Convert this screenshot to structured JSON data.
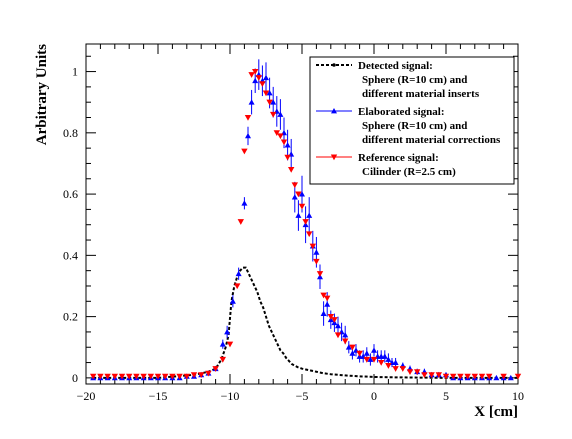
{
  "chart_data": {
    "type": "scatter",
    "xlabel": "X [cm]",
    "ylabel": "Arbitrary Units",
    "xlim": [
      -20,
      10
    ],
    "ylim": [
      -0.02,
      1.09
    ],
    "xticks": [
      -20,
      -15,
      -10,
      -5,
      0,
      5,
      10
    ],
    "yticks": [
      0,
      0.2,
      0.4,
      0.6,
      0.8,
      1
    ],
    "xtick_labels": [
      "−20",
      "−15",
      "−10",
      "−5",
      "0",
      "5",
      "10"
    ],
    "ytick_labels": [
      "0",
      "0.2",
      "0.4",
      "0.6",
      "0.8",
      "1"
    ],
    "grid": false,
    "legend_position": "top-right",
    "series": [
      {
        "name": "Detected signal:",
        "name_lines": [
          "Detected signal:",
          "Sphere (R=10 cm) and",
          "different material inserts"
        ],
        "style": "dashed-line",
        "color": "#000000",
        "x": [
          -19.5,
          -15,
          -12.5,
          -11.5,
          -11,
          -10.6,
          -10.3,
          -10.1,
          -9.9,
          -9.7,
          -9.5,
          -9.3,
          -9.1,
          -8.9,
          -8.7,
          -8.5,
          -8.3,
          -8.1,
          -7.9,
          -7.7,
          -7.5,
          -7.3,
          -7.1,
          -6.9,
          -6.7,
          -6.5,
          -6.3,
          -6.1,
          -5.9,
          -5.7,
          -5.5,
          -5.3,
          -5,
          -4.5,
          -4,
          -3.5,
          -3,
          -2,
          -1,
          0,
          1,
          3,
          5,
          7,
          10
        ],
        "y": [
          0.0,
          0.0,
          0.01,
          0.02,
          0.03,
          0.06,
          0.1,
          0.14,
          0.25,
          0.3,
          0.33,
          0.35,
          0.36,
          0.36,
          0.34,
          0.32,
          0.3,
          0.28,
          0.25,
          0.23,
          0.2,
          0.17,
          0.15,
          0.13,
          0.11,
          0.09,
          0.08,
          0.065,
          0.055,
          0.045,
          0.04,
          0.035,
          0.03,
          0.025,
          0.02,
          0.015,
          0.012,
          0.008,
          0.005,
          0.003,
          0.002,
          0.001,
          0.0,
          0.0,
          0.0
        ]
      },
      {
        "name": "Elaborated signal:",
        "name_lines": [
          "Elaborated signal:",
          "Sphere (R=10 cm) and",
          "different material corrections"
        ],
        "style": "markers-errorbars",
        "marker": "triangle-up",
        "color": "#0000ff",
        "x": [
          -19.5,
          -19,
          -18.5,
          -18,
          -17.5,
          -17,
          -16.5,
          -16,
          -15.5,
          -15,
          -14.5,
          -14,
          -13.5,
          -13,
          -12.5,
          -12,
          -11.5,
          -11,
          -10.5,
          -10.2,
          -9.8,
          -9.4,
          -9,
          -8.75,
          -8.5,
          -8.25,
          -8,
          -7.75,
          -7.5,
          -7.25,
          -7,
          -6.75,
          -6.5,
          -6.25,
          -6,
          -5.75,
          -5.5,
          -5.25,
          -5,
          -4.75,
          -4.5,
          -4.25,
          -4,
          -3.75,
          -3.5,
          -3.25,
          -3,
          -2.75,
          -2.5,
          -2.25,
          -2,
          -1.75,
          -1.5,
          -1.25,
          -1,
          -0.75,
          -0.5,
          -0.25,
          0,
          0.25,
          0.5,
          0.75,
          1,
          1.25,
          1.5,
          2,
          2.5,
          3,
          3.5,
          4,
          4.5,
          5,
          5.5,
          6,
          6.5,
          7,
          7.5,
          8,
          8.5,
          9,
          9.5
        ],
        "y": [
          0.0,
          0.0,
          0.0,
          0.0,
          0.0,
          0.0,
          0.0,
          0.0,
          0.0,
          0.0,
          0.0,
          0.0,
          0.0,
          0.005,
          0.005,
          0.01,
          0.015,
          0.03,
          0.11,
          0.15,
          0.25,
          0.34,
          0.57,
          0.79,
          0.9,
          0.97,
          0.99,
          0.97,
          0.98,
          0.93,
          0.9,
          0.87,
          0.86,
          0.8,
          0.76,
          0.73,
          0.59,
          0.53,
          0.6,
          0.5,
          0.53,
          0.43,
          0.41,
          0.33,
          0.21,
          0.24,
          0.19,
          0.18,
          0.17,
          0.15,
          0.14,
          0.1,
          0.08,
          0.09,
          0.07,
          0.07,
          0.08,
          0.06,
          0.09,
          0.07,
          0.07,
          0.07,
          0.06,
          0.05,
          0.05,
          0.04,
          0.03,
          0.02,
          0.02,
          0.01,
          0.01,
          0.01,
          0.0,
          0.0,
          0.0,
          0.0,
          0.0,
          0.0,
          0.0,
          0.0,
          0.0
        ],
        "yerr": [
          0.005,
          0.005,
          0.005,
          0.005,
          0.005,
          0.005,
          0.005,
          0.005,
          0.005,
          0.005,
          0.005,
          0.005,
          0.005,
          0.005,
          0.005,
          0.005,
          0.005,
          0.008,
          0.015,
          0.02,
          0.02,
          0.02,
          0.02,
          0.03,
          0.04,
          0.04,
          0.05,
          0.05,
          0.05,
          0.05,
          0.05,
          0.05,
          0.05,
          0.05,
          0.05,
          0.05,
          0.05,
          0.05,
          0.06,
          0.06,
          0.06,
          0.05,
          0.05,
          0.04,
          0.04,
          0.04,
          0.03,
          0.03,
          0.03,
          0.03,
          0.03,
          0.02,
          0.02,
          0.02,
          0.02,
          0.02,
          0.02,
          0.02,
          0.02,
          0.02,
          0.02,
          0.02,
          0.02,
          0.015,
          0.015,
          0.01,
          0.01,
          0.01,
          0.01,
          0.008,
          0.008,
          0.005,
          0.005,
          0.005,
          0.005,
          0.005,
          0.005,
          0.005,
          0.005,
          0.005,
          0.005
        ]
      },
      {
        "name": "Reference signal:",
        "name_lines": [
          "Reference signal:",
          "Cilinder (R=2.5 cm)"
        ],
        "style": "markers",
        "marker": "triangle-down",
        "color": "#ff0000",
        "x": [
          -19.5,
          -19,
          -18.5,
          -18,
          -17.5,
          -17,
          -16.5,
          -16,
          -15.5,
          -15,
          -14.5,
          -14,
          -13.5,
          -13,
          -12.5,
          -12,
          -11.5,
          -11,
          -10.5,
          -10,
          -9.5,
          -9.25,
          -9,
          -8.75,
          -8.5,
          -8.25,
          -8,
          -7.75,
          -7.5,
          -7.25,
          -7,
          -6.75,
          -6.5,
          -6.25,
          -6,
          -5.75,
          -5.5,
          -5.25,
          -5,
          -4.75,
          -4.5,
          -4.25,
          -4,
          -3.75,
          -3.5,
          -3.25,
          -3,
          -2.75,
          -2.5,
          -2,
          -1.5,
          -1,
          -0.5,
          0,
          0.5,
          1,
          1.5,
          2,
          2.5,
          3,
          3.5,
          4,
          4.5,
          5,
          5.5,
          6,
          6.5,
          7,
          7.5,
          8,
          9,
          10
        ],
        "y": [
          0.005,
          0.005,
          0.005,
          0.005,
          0.005,
          0.005,
          0.005,
          0.005,
          0.005,
          0.005,
          0.005,
          0.005,
          0.005,
          0.005,
          0.01,
          0.01,
          0.015,
          0.03,
          0.06,
          0.11,
          0.3,
          0.51,
          0.74,
          0.85,
          0.99,
          1.0,
          0.98,
          0.96,
          0.93,
          0.9,
          0.86,
          0.8,
          0.79,
          0.77,
          0.72,
          0.68,
          0.63,
          0.6,
          0.56,
          0.51,
          0.47,
          0.43,
          0.38,
          0.34,
          0.27,
          0.26,
          0.2,
          0.19,
          0.14,
          0.12,
          0.1,
          0.08,
          0.06,
          0.06,
          0.05,
          0.04,
          0.03,
          0.03,
          0.02,
          0.02,
          0.01,
          0.01,
          0.01,
          0.005,
          0.005,
          0.005,
          0.005,
          0.005,
          0.005,
          0.005,
          0.005,
          0.005
        ]
      }
    ]
  }
}
